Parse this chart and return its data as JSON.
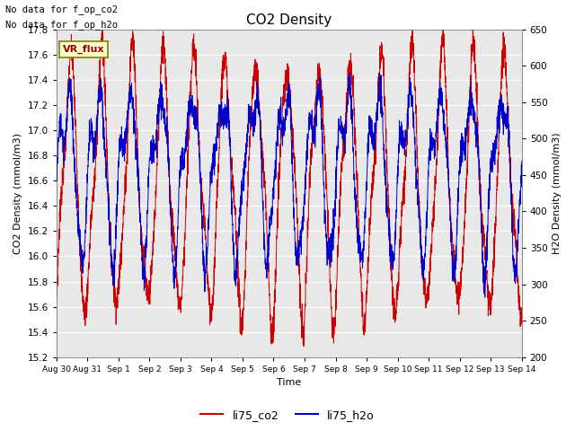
{
  "title": "CO2 Density",
  "xlabel": "Time",
  "ylabel_left": "CO2 Density (mmol/m3)",
  "ylabel_right": "H2O Density (mmol/m3)",
  "ylim_left": [
    15.2,
    17.8
  ],
  "ylim_right": [
    200,
    650
  ],
  "xtick_labels": [
    "Aug 30",
    "Aug 31",
    "Sep 1",
    "Sep 2",
    "Sep 3",
    "Sep 4",
    "Sep 5",
    "Sep 6",
    "Sep 7",
    "Sep 8",
    "Sep 9",
    "Sep 10",
    "Sep 11",
    "Sep 12",
    "Sep 13",
    "Sep 14"
  ],
  "annotation1": "No data for f_op_co2",
  "annotation2": "No data for f_op_h2o",
  "vr_flux_label": "VR_flux",
  "legend_labels": [
    "li75_co2",
    "li75_h2o"
  ],
  "co2_color": "#cc0000",
  "h2o_color": "#0000cc",
  "fig_bg_color": "#ffffff",
  "plot_bg_color": "#e8e8e8",
  "vr_flux_bg": "#ffffcc",
  "vr_flux_text_color": "#990000",
  "n_points": 3000
}
